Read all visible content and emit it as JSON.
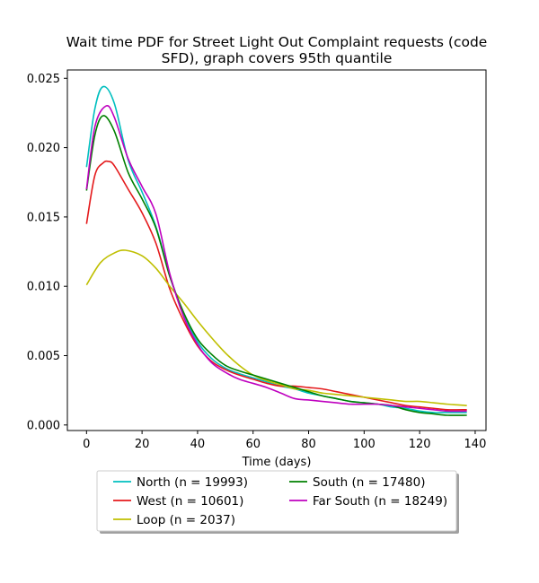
{
  "chart_data": {
    "type": "line",
    "title": "Wait time PDF for Street Light Out Complaint  requests (code SFD), graph covers 95th quantile",
    "title_lines": [
      "Wait time PDF for Street Light Out Complaint  requests (code",
      "SFD), graph covers 95th quantile"
    ],
    "xlabel": "Time (days)",
    "ylabel": "",
    "xlim": [
      -6.9,
      143.9
    ],
    "ylim": [
      -0.0004,
      0.0256
    ],
    "x_ticks": [
      0,
      20,
      40,
      60,
      80,
      100,
      120,
      140
    ],
    "x_tick_labels": [
      "0",
      "20",
      "40",
      "60",
      "80",
      "100",
      "120",
      "140"
    ],
    "y_ticks": [
      0.0,
      0.005,
      0.01,
      0.015,
      0.02,
      0.025
    ],
    "y_tick_labels": [
      "0.000",
      "0.005",
      "0.010",
      "0.015",
      "0.020",
      "0.025"
    ],
    "grid": false,
    "legend_position": "below plot, centered, 2 columns",
    "series": [
      {
        "name": "North (n = 19993)",
        "color": "#00bfbf",
        "x": [
          0,
          3,
          6,
          10,
          15,
          20,
          25,
          30,
          35,
          40,
          45,
          50,
          55,
          60,
          65,
          70,
          75,
          80,
          85,
          90,
          95,
          100,
          105,
          110,
          115,
          120,
          125,
          130,
          137
        ],
        "y": [
          0.0186,
          0.0228,
          0.0244,
          0.0232,
          0.0191,
          0.0168,
          0.0143,
          0.0108,
          0.008,
          0.006,
          0.0048,
          0.0041,
          0.0037,
          0.0034,
          0.0031,
          0.0028,
          0.0026,
          0.0023,
          0.0021,
          0.0019,
          0.0017,
          0.0016,
          0.0015,
          0.0013,
          0.0012,
          0.001,
          0.0009,
          0.0009,
          0.0009
        ]
      },
      {
        "name": "West (n = 10601)",
        "color": "#e41a1c",
        "x": [
          0,
          3,
          6,
          8,
          10,
          15,
          20,
          25,
          30,
          35,
          40,
          45,
          50,
          55,
          60,
          65,
          70,
          75,
          80,
          85,
          90,
          95,
          100,
          105,
          110,
          115,
          120,
          125,
          130,
          137
        ],
        "y": [
          0.0145,
          0.018,
          0.0189,
          0.019,
          0.0187,
          0.017,
          0.0153,
          0.0131,
          0.0098,
          0.0075,
          0.0057,
          0.0046,
          0.004,
          0.0036,
          0.0033,
          0.003,
          0.0028,
          0.0028,
          0.0027,
          0.0026,
          0.0024,
          0.0022,
          0.002,
          0.0018,
          0.0016,
          0.0014,
          0.0013,
          0.0012,
          0.0011,
          0.0011
        ]
      },
      {
        "name": "Loop (n = 2037)",
        "color": "#bfbf00",
        "x": [
          0,
          5,
          10,
          14,
          20,
          25,
          30,
          35,
          40,
          45,
          50,
          55,
          60,
          65,
          70,
          75,
          80,
          85,
          90,
          95,
          100,
          105,
          110,
          115,
          120,
          125,
          130,
          137
        ],
        "y": [
          0.0101,
          0.0117,
          0.0124,
          0.0126,
          0.0122,
          0.0113,
          0.01,
          0.0088,
          0.0075,
          0.0063,
          0.0052,
          0.0043,
          0.0036,
          0.0032,
          0.0029,
          0.0026,
          0.0025,
          0.0023,
          0.0022,
          0.0021,
          0.002,
          0.0019,
          0.0018,
          0.0017,
          0.0017,
          0.0016,
          0.0015,
          0.0014
        ]
      },
      {
        "name": "South (n = 17480)",
        "color": "#008000",
        "x": [
          0,
          3,
          6,
          10,
          15,
          20,
          25,
          30,
          35,
          40,
          45,
          50,
          55,
          60,
          65,
          70,
          75,
          80,
          85,
          90,
          95,
          100,
          105,
          110,
          115,
          120,
          125,
          130,
          137
        ],
        "y": [
          0.0169,
          0.0209,
          0.0223,
          0.0212,
          0.0182,
          0.0163,
          0.0142,
          0.0107,
          0.0081,
          0.0062,
          0.0051,
          0.0043,
          0.0039,
          0.0036,
          0.0033,
          0.003,
          0.0027,
          0.0024,
          0.0021,
          0.0019,
          0.0017,
          0.0016,
          0.0015,
          0.0014,
          0.0011,
          0.0009,
          0.0008,
          0.0007,
          0.0007
        ]
      },
      {
        "name": "Far South (n = 18249)",
        "color": "#bf00bf",
        "x": [
          0,
          3,
          7,
          10,
          15,
          20,
          25,
          30,
          35,
          40,
          45,
          50,
          55,
          60,
          65,
          70,
          75,
          80,
          85,
          90,
          95,
          100,
          105,
          110,
          115,
          120,
          125,
          130,
          137
        ],
        "y": [
          0.017,
          0.0215,
          0.023,
          0.0222,
          0.0192,
          0.0172,
          0.0152,
          0.0109,
          0.0078,
          0.0058,
          0.0045,
          0.0038,
          0.0033,
          0.003,
          0.0027,
          0.0023,
          0.0019,
          0.0018,
          0.0017,
          0.0016,
          0.0015,
          0.0015,
          0.0015,
          0.0014,
          0.0013,
          0.0012,
          0.0011,
          0.001,
          0.001
        ]
      }
    ]
  }
}
